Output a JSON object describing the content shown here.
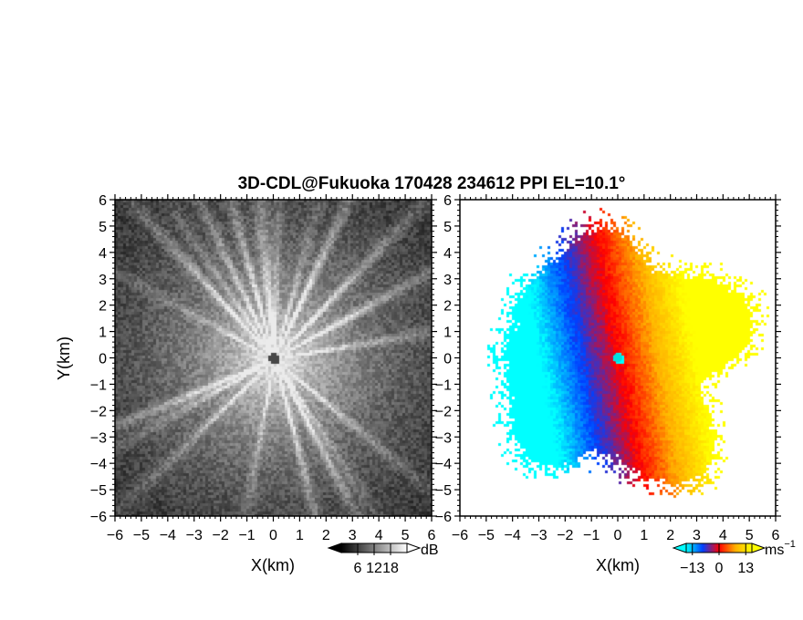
{
  "chart_data": {
    "type": "heatmap",
    "title": "3D-CDL@Fukuoka 170428 234612 PPI EL=10.1°",
    "xlabel": "X(km)",
    "ylabel": "Y(km)",
    "xlim": [
      -6,
      6
    ],
    "ylim": [
      -6,
      6
    ],
    "ticks": [
      "−6",
      "−5",
      "−4",
      "−3",
      "−2",
      "−1",
      "0",
      "1",
      "2",
      "3",
      "4",
      "5",
      "6"
    ],
    "panels": [
      {
        "name": "reflectivity",
        "colormap": "grayscale",
        "colorbar": {
          "unit": "dB",
          "ticks": [
            6,
            12,
            18
          ],
          "tick_labels": [
            "6",
            "12",
            "18"
          ],
          "range": [
            0,
            24
          ],
          "colors": [
            "#000000",
            "#ffffff"
          ]
        }
      },
      {
        "name": "doppler-velocity",
        "colormap": "diverging",
        "colorbar": {
          "unit": "ms",
          "unit_exp": "−1",
          "ticks": [
            -13,
            0,
            13
          ],
          "tick_labels": [
            "−13",
            "0",
            "13"
          ],
          "range": [
            -16,
            16
          ],
          "colors": [
            "#00ffff",
            "#0040ff",
            "#ff0000",
            "#ffb000",
            "#ffff00"
          ]
        }
      }
    ]
  }
}
